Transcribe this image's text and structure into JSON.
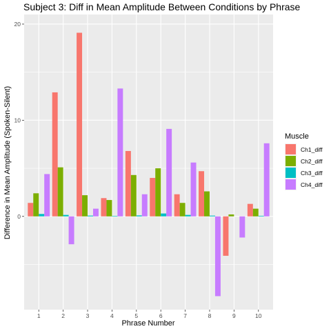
{
  "chart_data": {
    "type": "bar",
    "title": "Subject 3: Diff in Mean Amplitude Between Conditions by Phrase",
    "xlabel": "Phrase Number",
    "ylabel": "Difference in Mean Amplitude (Spoken-Silent)",
    "categories": [
      "1",
      "2",
      "3",
      "4",
      "5",
      "6",
      "7",
      "8",
      "9",
      "10"
    ],
    "ylim": [
      -8.3,
      20.0
    ],
    "yticks": [
      0,
      10,
      20
    ],
    "grid": true,
    "legend": {
      "title": "Muscle",
      "placement": "right"
    },
    "series": [
      {
        "name": "Ch1_diff",
        "color": "#F8766D",
        "values": [
          1.4,
          12.9,
          19.1,
          1.9,
          6.8,
          4.0,
          2.3,
          4.7,
          -4.1,
          1.3
        ]
      },
      {
        "name": "Ch2_diff",
        "color": "#7CAE00",
        "values": [
          2.4,
          5.1,
          2.2,
          1.7,
          4.3,
          5.0,
          1.4,
          2.6,
          0.2,
          0.8
        ]
      },
      {
        "name": "Ch3_diff",
        "color": "#00BFC4",
        "values": [
          0.25,
          0.15,
          0.08,
          0.05,
          0.1,
          0.3,
          0.15,
          0.08,
          0.0,
          0.06
        ]
      },
      {
        "name": "Ch4_diff",
        "color": "#C77CFF",
        "values": [
          4.4,
          -2.9,
          0.8,
          13.3,
          2.3,
          9.1,
          5.6,
          -8.3,
          -2.2,
          7.6
        ]
      }
    ]
  }
}
